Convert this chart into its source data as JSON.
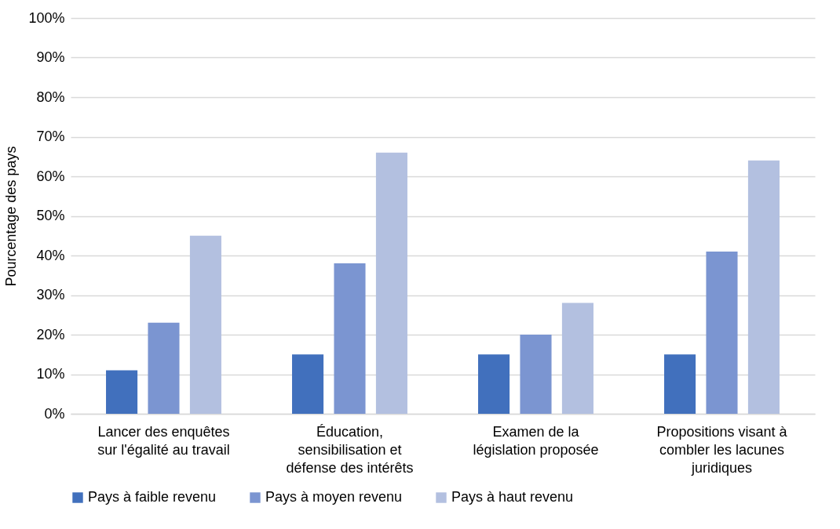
{
  "chart_data": {
    "type": "bar",
    "ylabel": "Pourcentage des pays",
    "categories": [
      "Lancer des enquêtes\nsur l'égalité au travail",
      "Éducation,\nsensibilisation et\ndéfense des intérêts",
      "Examen de la\nlégislation proposée",
      "Propositions visant à\ncombler les lacunes\njuridiques"
    ],
    "series": [
      {
        "name": "Pays à faible revenu",
        "color": "#4170bd",
        "values": [
          11,
          15,
          15,
          15
        ]
      },
      {
        "name": "Pays à moyen revenu",
        "color": "#7b95d1",
        "values": [
          23,
          38,
          20,
          41
        ]
      },
      {
        "name": "Pays à haut revenu",
        "color": "#b3c0e0",
        "values": [
          45,
          66,
          28,
          64
        ]
      }
    ],
    "ylim": [
      0,
      100
    ],
    "yticks": [
      {
        "value": 0,
        "label": "0%"
      },
      {
        "value": 10,
        "label": "10%"
      },
      {
        "value": 20,
        "label": "20%"
      },
      {
        "value": 30,
        "label": "30%"
      },
      {
        "value": 40,
        "label": "40%"
      },
      {
        "value": 50,
        "label": "50%"
      },
      {
        "value": 60,
        "label": "60%"
      },
      {
        "value": 70,
        "label": "70%"
      },
      {
        "value": 80,
        "label": "80%"
      },
      {
        "value": 90,
        "label": "90%"
      },
      {
        "value": 100,
        "label": "100%"
      }
    ],
    "grid": "y",
    "legend": "bottom"
  }
}
